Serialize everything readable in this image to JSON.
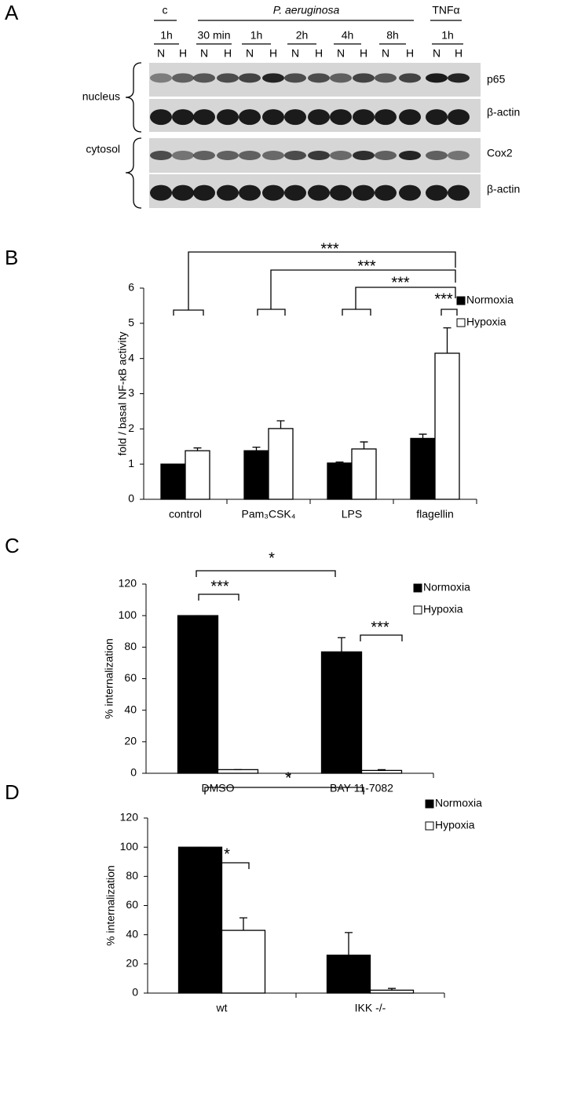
{
  "blot": {
    "panel_label": "A",
    "groups": [
      "c",
      "P. aeruginosa",
      "TNFα"
    ],
    "timepoints": [
      "1h",
      "30 min",
      "1h",
      "2h",
      "4h",
      "8h",
      "1h"
    ],
    "lanes": [
      "N",
      "H",
      "N",
      "H",
      "N",
      "H",
      "N",
      "H",
      "N",
      "H",
      "N",
      "H",
      "N",
      "H"
    ],
    "fractions": [
      "nucleus",
      "cytosol"
    ],
    "proteins": [
      "p65",
      "β-actin",
      "Cox2",
      "β-actin"
    ]
  },
  "chart_data": [
    {
      "type": "bar",
      "panel_label": "B",
      "ylabel": "fold / basal NF-κB activity",
      "categories": [
        "control",
        "Pam₃CSK₄",
        "LPS",
        "flagellin"
      ],
      "series": [
        {
          "name": "Normoxia",
          "color": "#000000",
          "values": [
            1.0,
            1.38,
            1.03,
            1.73
          ],
          "errors": [
            0.0,
            0.1,
            0.03,
            0.12
          ]
        },
        {
          "name": "Hypoxia",
          "color": "#ffffff",
          "values": [
            1.38,
            2.01,
            1.43,
            4.15
          ],
          "errors": [
            0.08,
            0.22,
            0.2,
            0.72
          ]
        }
      ],
      "ylim": [
        0,
        6
      ],
      "yticks": [
        0,
        1,
        2,
        3,
        4,
        5,
        6
      ],
      "legend": "upper right",
      "annotations": [
        "***",
        "***",
        "***",
        "***"
      ]
    },
    {
      "type": "bar",
      "panel_label": "C",
      "ylabel": "% internalization",
      "categories": [
        "DMSO",
        "BAY 11-7082"
      ],
      "series": [
        {
          "name": "Normoxia",
          "color": "#000000",
          "values": [
            100,
            77
          ],
          "errors": [
            0,
            9
          ]
        },
        {
          "name": "Hypoxia",
          "color": "#ffffff",
          "values": [
            2.3,
            1.8
          ],
          "errors": [
            0,
            0.5
          ]
        }
      ],
      "ylim": [
        0,
        120
      ],
      "yticks": [
        0,
        20,
        40,
        60,
        80,
        100,
        120
      ],
      "legend": "upper right",
      "annotations": [
        "***",
        "*",
        "***"
      ]
    },
    {
      "type": "bar",
      "panel_label": "D",
      "ylabel": "% internalization",
      "categories": [
        "wt",
        "IKK -/-"
      ],
      "series": [
        {
          "name": "Normoxia",
          "color": "#000000",
          "values": [
            100,
            26
          ],
          "errors": [
            0,
            15.5
          ]
        },
        {
          "name": "Hypoxia",
          "color": "#ffffff",
          "values": [
            43,
            2
          ],
          "errors": [
            8.6,
            1.2
          ]
        }
      ],
      "ylim": [
        0,
        120
      ],
      "yticks": [
        0,
        20,
        40,
        60,
        80,
        100,
        120
      ],
      "legend": "upper right",
      "annotations": [
        "*",
        "*"
      ]
    }
  ]
}
